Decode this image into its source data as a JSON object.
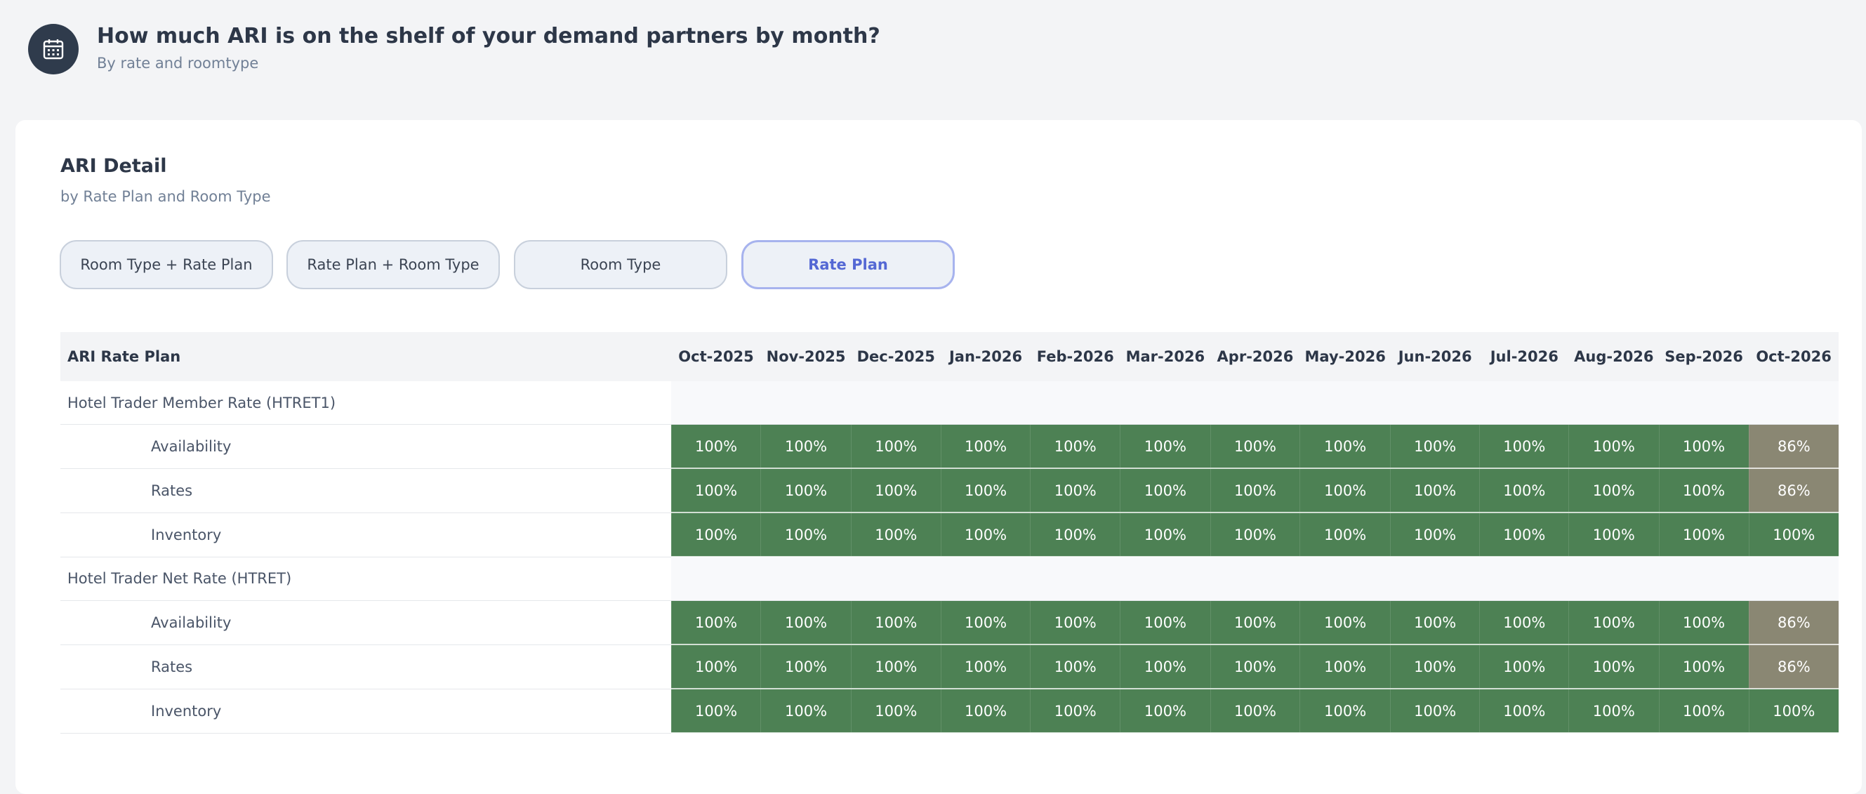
{
  "header": {
    "title": "How much ARI is on the shelf of your demand partners by month?",
    "subtitle": "By rate and roomtype"
  },
  "card": {
    "title": "ARI Detail",
    "subtitle": "by Rate Plan and Room Type"
  },
  "tabs": [
    {
      "label": "Room Type + Rate Plan"
    },
    {
      "label": "Rate Plan + Room Type"
    },
    {
      "label": "Room Type"
    },
    {
      "label": "Rate Plan",
      "active": true
    }
  ],
  "table": {
    "columns": [
      "ARI Rate Plan",
      "Oct-2025",
      "Nov-2025",
      "Dec-2025",
      "Jan-2026",
      "Feb-2026",
      "Mar-2026",
      "Apr-2026",
      "May-2026",
      "Jun-2026",
      "Jul-2026",
      "Aug-2026",
      "Sep-2026",
      "Oct-2026"
    ],
    "groups": [
      {
        "name": "Hotel Trader Member Rate (HTRET1)",
        "rows": [
          {
            "label": "Availability",
            "cells": [
              "100%",
              "100%",
              "100%",
              "100%",
              "100%",
              "100%",
              "100%",
              "100%",
              "100%",
              "100%",
              "100%",
              "100%",
              "86%"
            ],
            "colors": [
              "#4d8154",
              "#4d8154",
              "#4d8154",
              "#4d8154",
              "#4d8154",
              "#4d8154",
              "#4d8154",
              "#4d8154",
              "#4d8154",
              "#4d8154",
              "#4d8154",
              "#4d8154",
              "#8a8773"
            ]
          },
          {
            "label": "Rates",
            "cells": [
              "100%",
              "100%",
              "100%",
              "100%",
              "100%",
              "100%",
              "100%",
              "100%",
              "100%",
              "100%",
              "100%",
              "100%",
              "86%"
            ],
            "colors": [
              "#4d8154",
              "#4d8154",
              "#4d8154",
              "#4d8154",
              "#4d8154",
              "#4d8154",
              "#4d8154",
              "#4d8154",
              "#4d8154",
              "#4d8154",
              "#4d8154",
              "#4d8154",
              "#8a8773"
            ]
          },
          {
            "label": "Inventory",
            "cells": [
              "100%",
              "100%",
              "100%",
              "100%",
              "100%",
              "100%",
              "100%",
              "100%",
              "100%",
              "100%",
              "100%",
              "100%",
              "100%"
            ],
            "colors": [
              "#4d8154",
              "#4d8154",
              "#4d8154",
              "#4d8154",
              "#4d8154",
              "#4d8154",
              "#4d8154",
              "#4d8154",
              "#4d8154",
              "#4d8154",
              "#4d8154",
              "#4d8154",
              "#4d8154"
            ]
          }
        ]
      },
      {
        "name": "Hotel Trader Net Rate (HTRET)",
        "rows": [
          {
            "label": "Availability",
            "cells": [
              "100%",
              "100%",
              "100%",
              "100%",
              "100%",
              "100%",
              "100%",
              "100%",
              "100%",
              "100%",
              "100%",
              "100%",
              "86%"
            ],
            "colors": [
              "#4d8154",
              "#4d8154",
              "#4d8154",
              "#4d8154",
              "#4d8154",
              "#4d8154",
              "#4d8154",
              "#4d8154",
              "#4d8154",
              "#4d8154",
              "#4d8154",
              "#4d8154",
              "#8a8773"
            ]
          },
          {
            "label": "Rates",
            "cells": [
              "100%",
              "100%",
              "100%",
              "100%",
              "100%",
              "100%",
              "100%",
              "100%",
              "100%",
              "100%",
              "100%",
              "100%",
              "86%"
            ],
            "colors": [
              "#4d8154",
              "#4d8154",
              "#4d8154",
              "#4d8154",
              "#4d8154",
              "#4d8154",
              "#4d8154",
              "#4d8154",
              "#4d8154",
              "#4d8154",
              "#4d8154",
              "#4d8154",
              "#8a8773"
            ]
          },
          {
            "label": "Inventory",
            "cells": [
              "100%",
              "100%",
              "100%",
              "100%",
              "100%",
              "100%",
              "100%",
              "100%",
              "100%",
              "100%",
              "100%",
              "100%",
              "100%"
            ],
            "colors": [
              "#4d8154",
              "#4d8154",
              "#4d8154",
              "#4d8154",
              "#4d8154",
              "#4d8154",
              "#4d8154",
              "#4d8154",
              "#4d8154",
              "#4d8154",
              "#4d8154",
              "#4d8154",
              "#4d8154"
            ]
          }
        ]
      }
    ]
  }
}
